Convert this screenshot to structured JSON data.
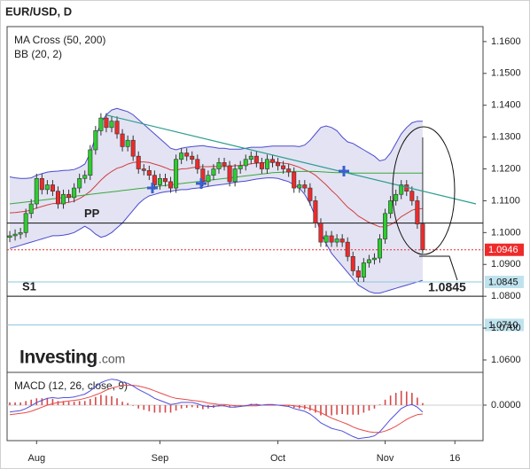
{
  "chart_data": {
    "type": "candlestick",
    "title": "EUR/USD, D",
    "indicator_labels": [
      "MA Cross (50, 200)",
      "BB (20, 2)"
    ],
    "brand": {
      "name": "Investing",
      "suffix": ".com"
    },
    "up_color": "#2ecc2e",
    "down_color": "#ee2a2a",
    "open": [
      1.0985,
      1.099,
      1.0995,
      1.1,
      1.106,
      1.109,
      1.117,
      1.1135,
      1.115,
      1.113,
      1.109,
      1.112,
      1.111,
      1.114,
      1.117,
      1.118,
      1.126,
      1.132,
      1.136,
      1.133,
      1.135,
      1.131,
      1.127,
      1.129,
      1.124,
      1.12,
      1.1195,
      1.118,
      1.115,
      1.117,
      1.116,
      1.114,
      1.123,
      1.125,
      1.124,
      1.123,
      1.12,
      1.116,
      1.118,
      1.12,
      1.122,
      1.121,
      1.116,
      1.12,
      1.121,
      1.123,
      1.124,
      1.122,
      1.12,
      1.123,
      1.122,
      1.121,
      1.12,
      1.119,
      1.114,
      1.115,
      1.114,
      1.11,
      1.103,
      1.097,
      1.099,
      1.097,
      1.098,
      1.097,
      1.0925,
      1.088,
      1.086,
      1.0905,
      1.0915,
      1.092,
      1.098,
      1.106,
      1.11,
      1.112,
      1.115,
      1.113,
      1.11,
      1.1027
    ],
    "high": [
      1.1005,
      1.101,
      1.1015,
      1.1075,
      1.1105,
      1.1185,
      1.1185,
      1.1165,
      1.1165,
      1.1145,
      1.1135,
      1.1135,
      1.1155,
      1.1185,
      1.1195,
      1.1275,
      1.1335,
      1.1375,
      1.1375,
      1.1365,
      1.1365,
      1.1325,
      1.1305,
      1.1305,
      1.1255,
      1.1215,
      1.121,
      1.1195,
      1.1185,
      1.1185,
      1.1175,
      1.1245,
      1.1265,
      1.1265,
      1.1255,
      1.1245,
      1.1215,
      1.1195,
      1.1215,
      1.1235,
      1.1235,
      1.1225,
      1.1215,
      1.1225,
      1.1245,
      1.1255,
      1.1255,
      1.1235,
      1.1245,
      1.1245,
      1.1235,
      1.1225,
      1.1215,
      1.1205,
      1.1165,
      1.1165,
      1.1155,
      1.1115,
      1.1045,
      1.1005,
      1.1005,
      1.0995,
      1.0995,
      1.0985,
      1.094,
      1.0895,
      1.092,
      1.093,
      1.0935,
      1.0995,
      1.1075,
      1.1115,
      1.1135,
      1.1165,
      1.1165,
      1.1145,
      1.1115,
      1.1299
    ],
    "low": [
      1.097,
      1.0975,
      1.098,
      1.0985,
      1.1045,
      1.1075,
      1.112,
      1.112,
      1.1115,
      1.1075,
      1.1075,
      1.1095,
      1.1095,
      1.1125,
      1.1155,
      1.1165,
      1.1245,
      1.1305,
      1.1315,
      1.1315,
      1.1295,
      1.1255,
      1.1255,
      1.1225,
      1.1185,
      1.118,
      1.1165,
      1.1135,
      1.1135,
      1.1145,
      1.1125,
      1.1125,
      1.1215,
      1.1225,
      1.1215,
      1.1185,
      1.1145,
      1.1145,
      1.1165,
      1.1185,
      1.1195,
      1.1145,
      1.1145,
      1.1185,
      1.1195,
      1.1215,
      1.1205,
      1.1185,
      1.1185,
      1.1205,
      1.1195,
      1.1185,
      1.1175,
      1.1125,
      1.1125,
      1.1125,
      1.1085,
      1.1015,
      1.0955,
      1.0955,
      1.0955,
      1.0955,
      1.0955,
      1.091,
      1.0865,
      1.0845,
      1.0845,
      1.089,
      1.09,
      1.0905,
      1.0965,
      1.1045,
      1.1085,
      1.1105,
      1.1115,
      1.1085,
      1.1012,
      1.0935
    ],
    "close": [
      1.099,
      1.0995,
      1.1,
      1.106,
      1.109,
      1.117,
      1.1135,
      1.115,
      1.113,
      1.109,
      1.112,
      1.111,
      1.114,
      1.117,
      1.118,
      1.126,
      1.132,
      1.136,
      1.133,
      1.135,
      1.131,
      1.127,
      1.129,
      1.124,
      1.12,
      1.1195,
      1.118,
      1.115,
      1.117,
      1.116,
      1.114,
      1.123,
      1.125,
      1.124,
      1.123,
      1.12,
      1.116,
      1.118,
      1.12,
      1.122,
      1.121,
      1.116,
      1.12,
      1.121,
      1.123,
      1.124,
      1.122,
      1.12,
      1.123,
      1.122,
      1.121,
      1.12,
      1.119,
      1.114,
      1.115,
      1.114,
      1.11,
      1.103,
      1.097,
      1.099,
      1.097,
      1.098,
      1.097,
      1.0925,
      1.088,
      1.086,
      1.0905,
      1.0915,
      1.092,
      1.098,
      1.106,
      1.11,
      1.112,
      1.115,
      1.113,
      1.11,
      1.1027,
      1.0946
    ],
    "band": {
      "color": "#4a4ad0",
      "fill": "#e3e3f3",
      "upper": [
        1.1175,
        1.1172,
        1.117,
        1.117,
        1.1172,
        1.118,
        1.1185,
        1.119,
        1.1192,
        1.1193,
        1.1195,
        1.1196,
        1.1198,
        1.1205,
        1.1215,
        1.125,
        1.13,
        1.1345,
        1.137,
        1.1385,
        1.139,
        1.1385,
        1.138,
        1.137,
        1.1355,
        1.134,
        1.1325,
        1.131,
        1.1295,
        1.128,
        1.1265,
        1.126,
        1.1265,
        1.1268,
        1.127,
        1.1272,
        1.1273,
        1.127,
        1.1268,
        1.1265,
        1.1265,
        1.1262,
        1.1262,
        1.1262,
        1.1265,
        1.1268,
        1.1268,
        1.1268,
        1.127,
        1.1272,
        1.1272,
        1.1272,
        1.1272,
        1.1272,
        1.127,
        1.1275,
        1.129,
        1.131,
        1.133,
        1.1335,
        1.133,
        1.132,
        1.13,
        1.1285,
        1.128,
        1.127,
        1.126,
        1.125,
        1.124,
        1.1225,
        1.123,
        1.125,
        1.128,
        1.131,
        1.133,
        1.1345,
        1.135,
        1.135
      ],
      "lower": [
        1.095,
        1.0955,
        1.096,
        1.0965,
        1.097,
        1.0975,
        1.098,
        1.0985,
        1.099,
        1.099,
        1.0992,
        1.0995,
        1.1,
        1.101,
        1.102,
        1.101,
        1.0995,
        1.0985,
        1.099,
        1.1,
        1.1015,
        1.103,
        1.105,
        1.107,
        1.109,
        1.1105,
        1.1115,
        1.112,
        1.1125,
        1.1128,
        1.113,
        1.1133,
        1.1135,
        1.1135,
        1.1138,
        1.114,
        1.1142,
        1.1145,
        1.1148,
        1.115,
        1.1152,
        1.1155,
        1.1158,
        1.116,
        1.1162,
        1.1165,
        1.1168,
        1.117,
        1.1172,
        1.1172,
        1.117,
        1.1165,
        1.116,
        1.115,
        1.114,
        1.112,
        1.109,
        1.105,
        1.1,
        1.0965,
        1.0935,
        1.0915,
        1.0895,
        1.0875,
        1.0855,
        1.0835,
        1.0825,
        1.0815,
        1.081,
        1.081,
        1.0815,
        1.082,
        1.0825,
        1.083,
        1.0835,
        1.084,
        1.0845,
        1.085
      ]
    },
    "lines": [
      {
        "color": "#d04040",
        "values": [
          1.1062,
          1.1063,
          1.1065,
          1.1067,
          1.1071,
          1.1077,
          1.1082,
          1.1087,
          1.1091,
          1.1092,
          1.1093,
          1.1095,
          1.1099,
          1.1107,
          1.1117,
          1.113,
          1.1147,
          1.1165,
          1.118,
          1.1192,
          1.1202,
          1.1207,
          1.1215,
          1.122,
          1.1222,
          1.1222,
          1.122,
          1.1215,
          1.121,
          1.1204,
          1.1197,
          1.1196,
          1.12,
          1.1201,
          1.1204,
          1.1206,
          1.1207,
          1.1207,
          1.1208,
          1.1207,
          1.1208,
          1.1208,
          1.121,
          1.1211,
          1.1213,
          1.1216,
          1.1218,
          1.1219,
          1.1221,
          1.1222,
          1.1221,
          1.1218,
          1.1216,
          1.1211,
          1.1205,
          1.1197,
          1.119,
          1.118,
          1.1165,
          1.115,
          1.1132,
          1.1117,
          1.1098,
          1.108,
          1.1067,
          1.1052,
          1.1042,
          1.1032,
          1.1025,
          1.1018,
          1.1018,
          1.1025,
          1.1035,
          1.105,
          1.106,
          1.107,
          1.1075,
          1.1075
        ]
      },
      {
        "color": "#3aa83a",
        "values": [
          1.109,
          1.1092,
          1.1094,
          1.1096,
          1.1098,
          1.11,
          1.1102,
          1.1104,
          1.1106,
          1.1108,
          1.111,
          1.1112,
          1.1114,
          1.1116,
          1.1118,
          1.112,
          1.1122,
          1.1124,
          1.1126,
          1.1128,
          1.113,
          1.1132,
          1.1134,
          1.1136,
          1.1138,
          1.114,
          1.1142,
          1.1144,
          1.1146,
          1.1148,
          1.115,
          1.1152,
          1.1154,
          1.1156,
          1.1158,
          1.116,
          1.1162,
          1.1164,
          1.1166,
          1.1168,
          1.117,
          1.1172,
          1.1174,
          1.1176,
          1.1178,
          1.118,
          1.1182,
          1.1184,
          1.1186,
          1.1188,
          1.1189,
          1.119,
          1.1191,
          1.1192,
          1.1192,
          1.1192,
          1.1192,
          1.1192,
          1.1191,
          1.119,
          1.1189,
          1.1188,
          1.1188,
          1.1188,
          1.1187,
          1.1187,
          1.1187,
          1.1187,
          1.1187,
          1.1187,
          1.1187,
          1.1187,
          1.1187,
          1.1187,
          1.1187,
          1.1187,
          1.1187,
          1.1187
        ]
      }
    ],
    "xlim": [
      -0.5,
      88.25
    ],
    "xticks": [
      {
        "value": 5,
        "label": "Aug"
      },
      {
        "value": 28,
        "label": "Sep"
      },
      {
        "value": 50,
        "label": "Oct"
      },
      {
        "value": 70,
        "label": "Nov"
      },
      {
        "value": 83,
        "label": "16"
      }
    ],
    "ylim": [
      1.0561,
      1.1647
    ],
    "yticks": [
      {
        "value": 1.16,
        "label": "1.1600"
      },
      {
        "value": 1.15,
        "label": "1.1500"
      },
      {
        "value": 1.14,
        "label": "1.1400"
      },
      {
        "value": 1.13,
        "label": "1.1300"
      },
      {
        "value": 1.12,
        "label": "1.1200"
      },
      {
        "value": 1.11,
        "label": "1.1100"
      },
      {
        "value": 1.1,
        "label": "1.1000"
      },
      {
        "value": 1.09,
        "label": "1.0900"
      },
      {
        "value": 1.08,
        "label": "1.0800"
      },
      {
        "value": 1.07,
        "label": "1.0700"
      },
      {
        "value": 1.06,
        "label": "1.0600"
      }
    ],
    "levels": [
      {
        "label": "PP",
        "value": 1.103,
        "color": "#111111"
      },
      {
        "label": "S1",
        "value": 1.08,
        "color": "#111111"
      }
    ],
    "price_labels": [
      {
        "value": 1.0946,
        "fill": "#ee2a2a",
        "text_color": "#ffffff",
        "line_color": "#ee2a2a",
        "dotted": true
      },
      {
        "value": 1.0845,
        "fill": "#bfe3ee",
        "text_color": "#111111",
        "line_color": "#8cc8dc",
        "dotted": false
      },
      {
        "value": 1.071,
        "label": "1.0710",
        "fill": "#bfe3ee",
        "text_color": "#111111",
        "line_color": "#8cc8dc",
        "dotted": false
      }
    ],
    "macd": {
      "label": "MACD (12, 26, close, 9)",
      "ylim": [
        -0.0052,
        0.0048
      ],
      "yticks": [
        {
          "value": 0,
          "label": "0.0000"
        }
      ],
      "macd_color": "#5050d8",
      "signal_color": "#e84a4a",
      "histogram_color": "#d84848",
      "macd": [
        -0.001,
        -0.0009,
        -0.0008,
        -0.0005,
        -0.0001,
        0.0004,
        0.0007,
        0.001,
        0.0011,
        0.001,
        0.0011,
        0.0011,
        0.0012,
        0.0014,
        0.0016,
        0.0021,
        0.0027,
        0.0033,
        0.0036,
        0.0038,
        0.0037,
        0.0034,
        0.0032,
        0.0028,
        0.0023,
        0.0019,
        0.0015,
        0.001,
        0.0007,
        0.0004,
        0.0001,
        0.0002,
        0.0004,
        0.0004,
        0.0004,
        0.0002,
        -0.0001,
        -0.0002,
        -0.0002,
        -0.0001,
        -0.0001,
        -0.0003,
        -0.0003,
        -0.0002,
        -0.0001,
        0.0001,
        0.0001,
        0.0,
        0.0001,
        0.0001,
        0.0,
        -0.0001,
        -0.0002,
        -0.0005,
        -0.0007,
        -0.0009,
        -0.0013,
        -0.0019,
        -0.0026,
        -0.003,
        -0.0034,
        -0.0036,
        -0.0038,
        -0.0042,
        -0.0046,
        -0.0049,
        -0.0048,
        -0.0047,
        -0.0045,
        -0.0039,
        -0.003,
        -0.0021,
        -0.0013,
        -0.0005,
        -0.0001,
        0.0001,
        -0.0003,
        -0.001
      ],
      "signal": [
        -0.0014,
        -0.0013,
        -0.0012,
        -0.0011,
        -0.0009,
        -0.0006,
        -0.0003,
        0.0,
        0.0002,
        0.0004,
        0.0005,
        0.0006,
        0.0007,
        0.0008,
        0.001,
        0.0012,
        0.0015,
        0.0018,
        0.0022,
        0.0025,
        0.0027,
        0.0029,
        0.0029,
        0.0029,
        0.0028,
        0.0026,
        0.0024,
        0.0021,
        0.0018,
        0.0015,
        0.0012,
        0.001,
        0.0009,
        0.0008,
        0.0007,
        0.0006,
        0.0005,
        0.0003,
        0.0002,
        0.0001,
        0.0001,
        0.0,
        -0.0001,
        -0.0001,
        -0.0001,
        -0.0001,
        -0.0001,
        0.0,
        0.0,
        0.0,
        0.0,
        0.0,
        0.0,
        -0.0001,
        -0.0002,
        -0.0003,
        -0.0005,
        -0.0008,
        -0.0011,
        -0.0015,
        -0.0019,
        -0.0022,
        -0.0025,
        -0.0028,
        -0.0032,
        -0.0035,
        -0.0037,
        -0.0039,
        -0.004,
        -0.004,
        -0.0038,
        -0.0035,
        -0.0031,
        -0.0026,
        -0.0021,
        -0.0017,
        -0.0014,
        -0.0013
      ],
      "histogram": [
        0.0004,
        0.0004,
        0.0004,
        0.0006,
        0.0008,
        0.001,
        0.001,
        0.001,
        0.0009,
        0.0006,
        0.0006,
        0.0005,
        0.0005,
        0.0006,
        0.0006,
        0.0009,
        0.0012,
        0.0015,
        0.0014,
        0.0013,
        0.001,
        0.0005,
        0.0003,
        -0.0001,
        -0.0005,
        -0.0007,
        -0.0009,
        -0.0011,
        -0.0011,
        -0.0011,
        -0.0011,
        -0.0008,
        -0.0005,
        -0.0004,
        -0.0003,
        -0.0004,
        -0.0006,
        -0.0005,
        -0.0004,
        -0.0002,
        -0.0002,
        -0.0003,
        -0.0002,
        -0.0001,
        0.0,
        0.0002,
        0.0002,
        0.0,
        0.0001,
        0.0001,
        0.0,
        -0.0001,
        -0.0002,
        -0.0004,
        -0.0005,
        -0.0006,
        -0.0008,
        -0.0011,
        -0.0015,
        -0.0015,
        -0.0015,
        -0.0014,
        -0.0013,
        -0.0014,
        -0.0014,
        -0.0014,
        -0.0011,
        -0.0008,
        -0.0005,
        0.0001,
        0.0008,
        0.0014,
        0.0018,
        0.0021,
        0.002,
        0.0018,
        0.0011,
        0.0003
      ]
    }
  }
}
